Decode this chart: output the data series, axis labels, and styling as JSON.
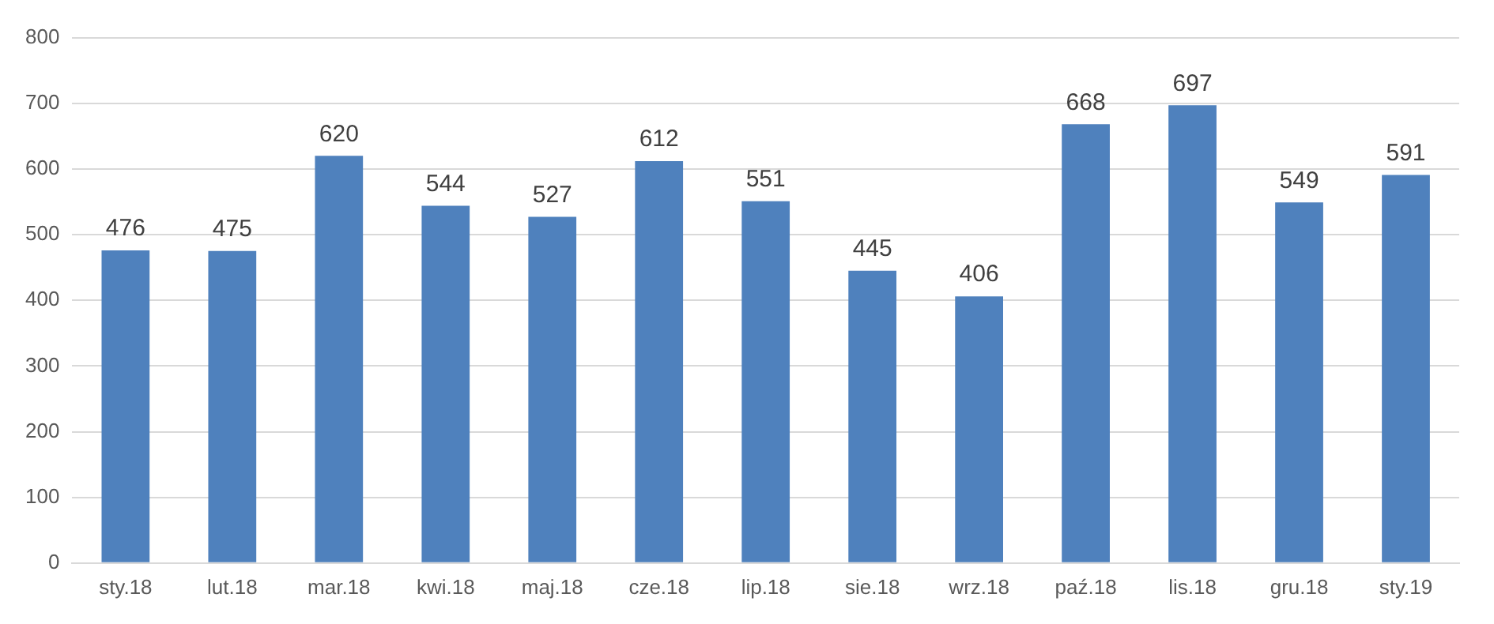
{
  "chart_data": {
    "type": "bar",
    "categories": [
      "sty.18",
      "lut.18",
      "mar.18",
      "kwi.18",
      "maj.18",
      "cze.18",
      "lip.18",
      "sie.18",
      "wrz.18",
      "paź.18",
      "lis.18",
      "gru.18",
      "sty.19"
    ],
    "values": [
      476,
      475,
      620,
      544,
      527,
      612,
      551,
      445,
      406,
      668,
      697,
      549,
      591
    ],
    "color": "#4f81bd",
    "ylim": [
      0,
      800
    ],
    "yticks": [
      0,
      100,
      200,
      300,
      400,
      500,
      600,
      700,
      800
    ],
    "grid": "y",
    "data_labels": true,
    "legend": false
  }
}
